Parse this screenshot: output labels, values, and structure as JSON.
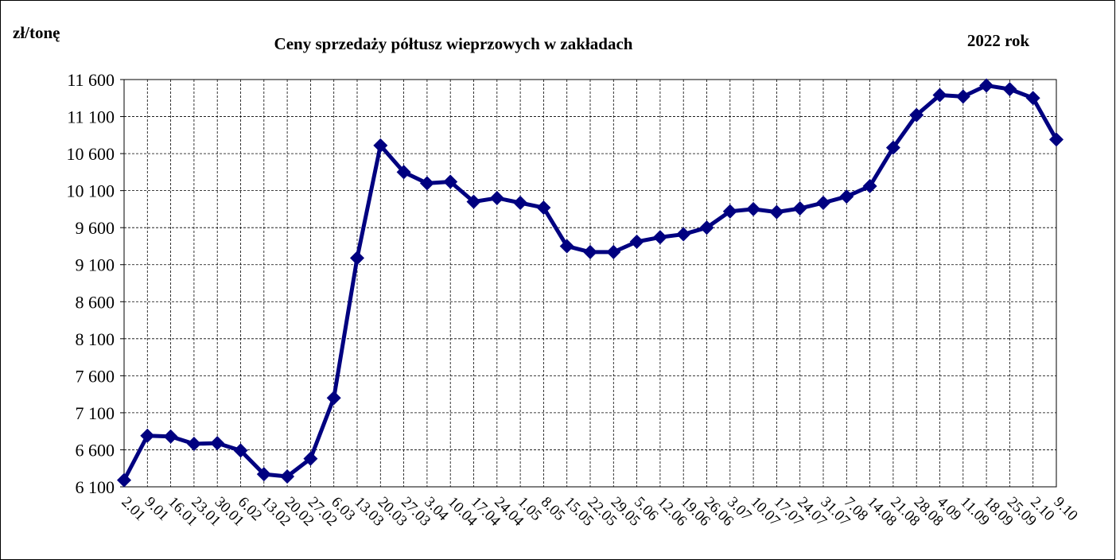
{
  "chart_data": {
    "type": "line",
    "title": "Ceny sprzedaży półtusz wieprzowych w zakładach",
    "unit_label": "zł/tonę",
    "year_label": "2022 rok",
    "categories": [
      "2.01",
      "9.01",
      "16.01",
      "23.01",
      "30.01",
      "6.02",
      "13.02",
      "20.02",
      "27.02",
      "6.03",
      "13.03",
      "20.03",
      "27.03",
      "3.04",
      "10.04",
      "17.04",
      "24.04",
      "1.05",
      "8.05",
      "15.05",
      "22.05",
      "29.05",
      "5.06",
      "12.06",
      "19.06",
      "26.06",
      "3.07",
      "10.07",
      "17.07",
      "24.07",
      "31.07",
      "7.08",
      "14.08",
      "21.08",
      "28.08",
      "4.09",
      "11.09",
      "18.09",
      "25.09",
      "2.10",
      "9.10"
    ],
    "values": [
      6190,
      6790,
      6780,
      6680,
      6690,
      6590,
      6270,
      6240,
      6480,
      7300,
      9190,
      10710,
      10350,
      10200,
      10220,
      9950,
      10000,
      9935,
      9870,
      9350,
      9270,
      9270,
      9410,
      9470,
      9510,
      9600,
      9820,
      9850,
      9810,
      9860,
      9935,
      10020,
      10160,
      10680,
      11120,
      11390,
      11370,
      11520,
      11470,
      11350,
      10790
    ],
    "color": "#000080",
    "ylim": [
      6100,
      11600
    ],
    "yticks": [
      {
        "value": 6100,
        "label": "6 100"
      },
      {
        "value": 6600,
        "label": "6 600"
      },
      {
        "value": 7100,
        "label": "7 100"
      },
      {
        "value": 7600,
        "label": "7 600"
      },
      {
        "value": 8100,
        "label": "8 100"
      },
      {
        "value": 8600,
        "label": "8 600"
      },
      {
        "value": 9100,
        "label": "9 100"
      },
      {
        "value": 9600,
        "label": "9 600"
      },
      {
        "value": 10100,
        "label": "10 100"
      },
      {
        "value": 10600,
        "label": "10 600"
      },
      {
        "value": 11100,
        "label": "11 100"
      },
      {
        "value": 11600,
        "label": "11 600"
      }
    ],
    "grid": true
  }
}
